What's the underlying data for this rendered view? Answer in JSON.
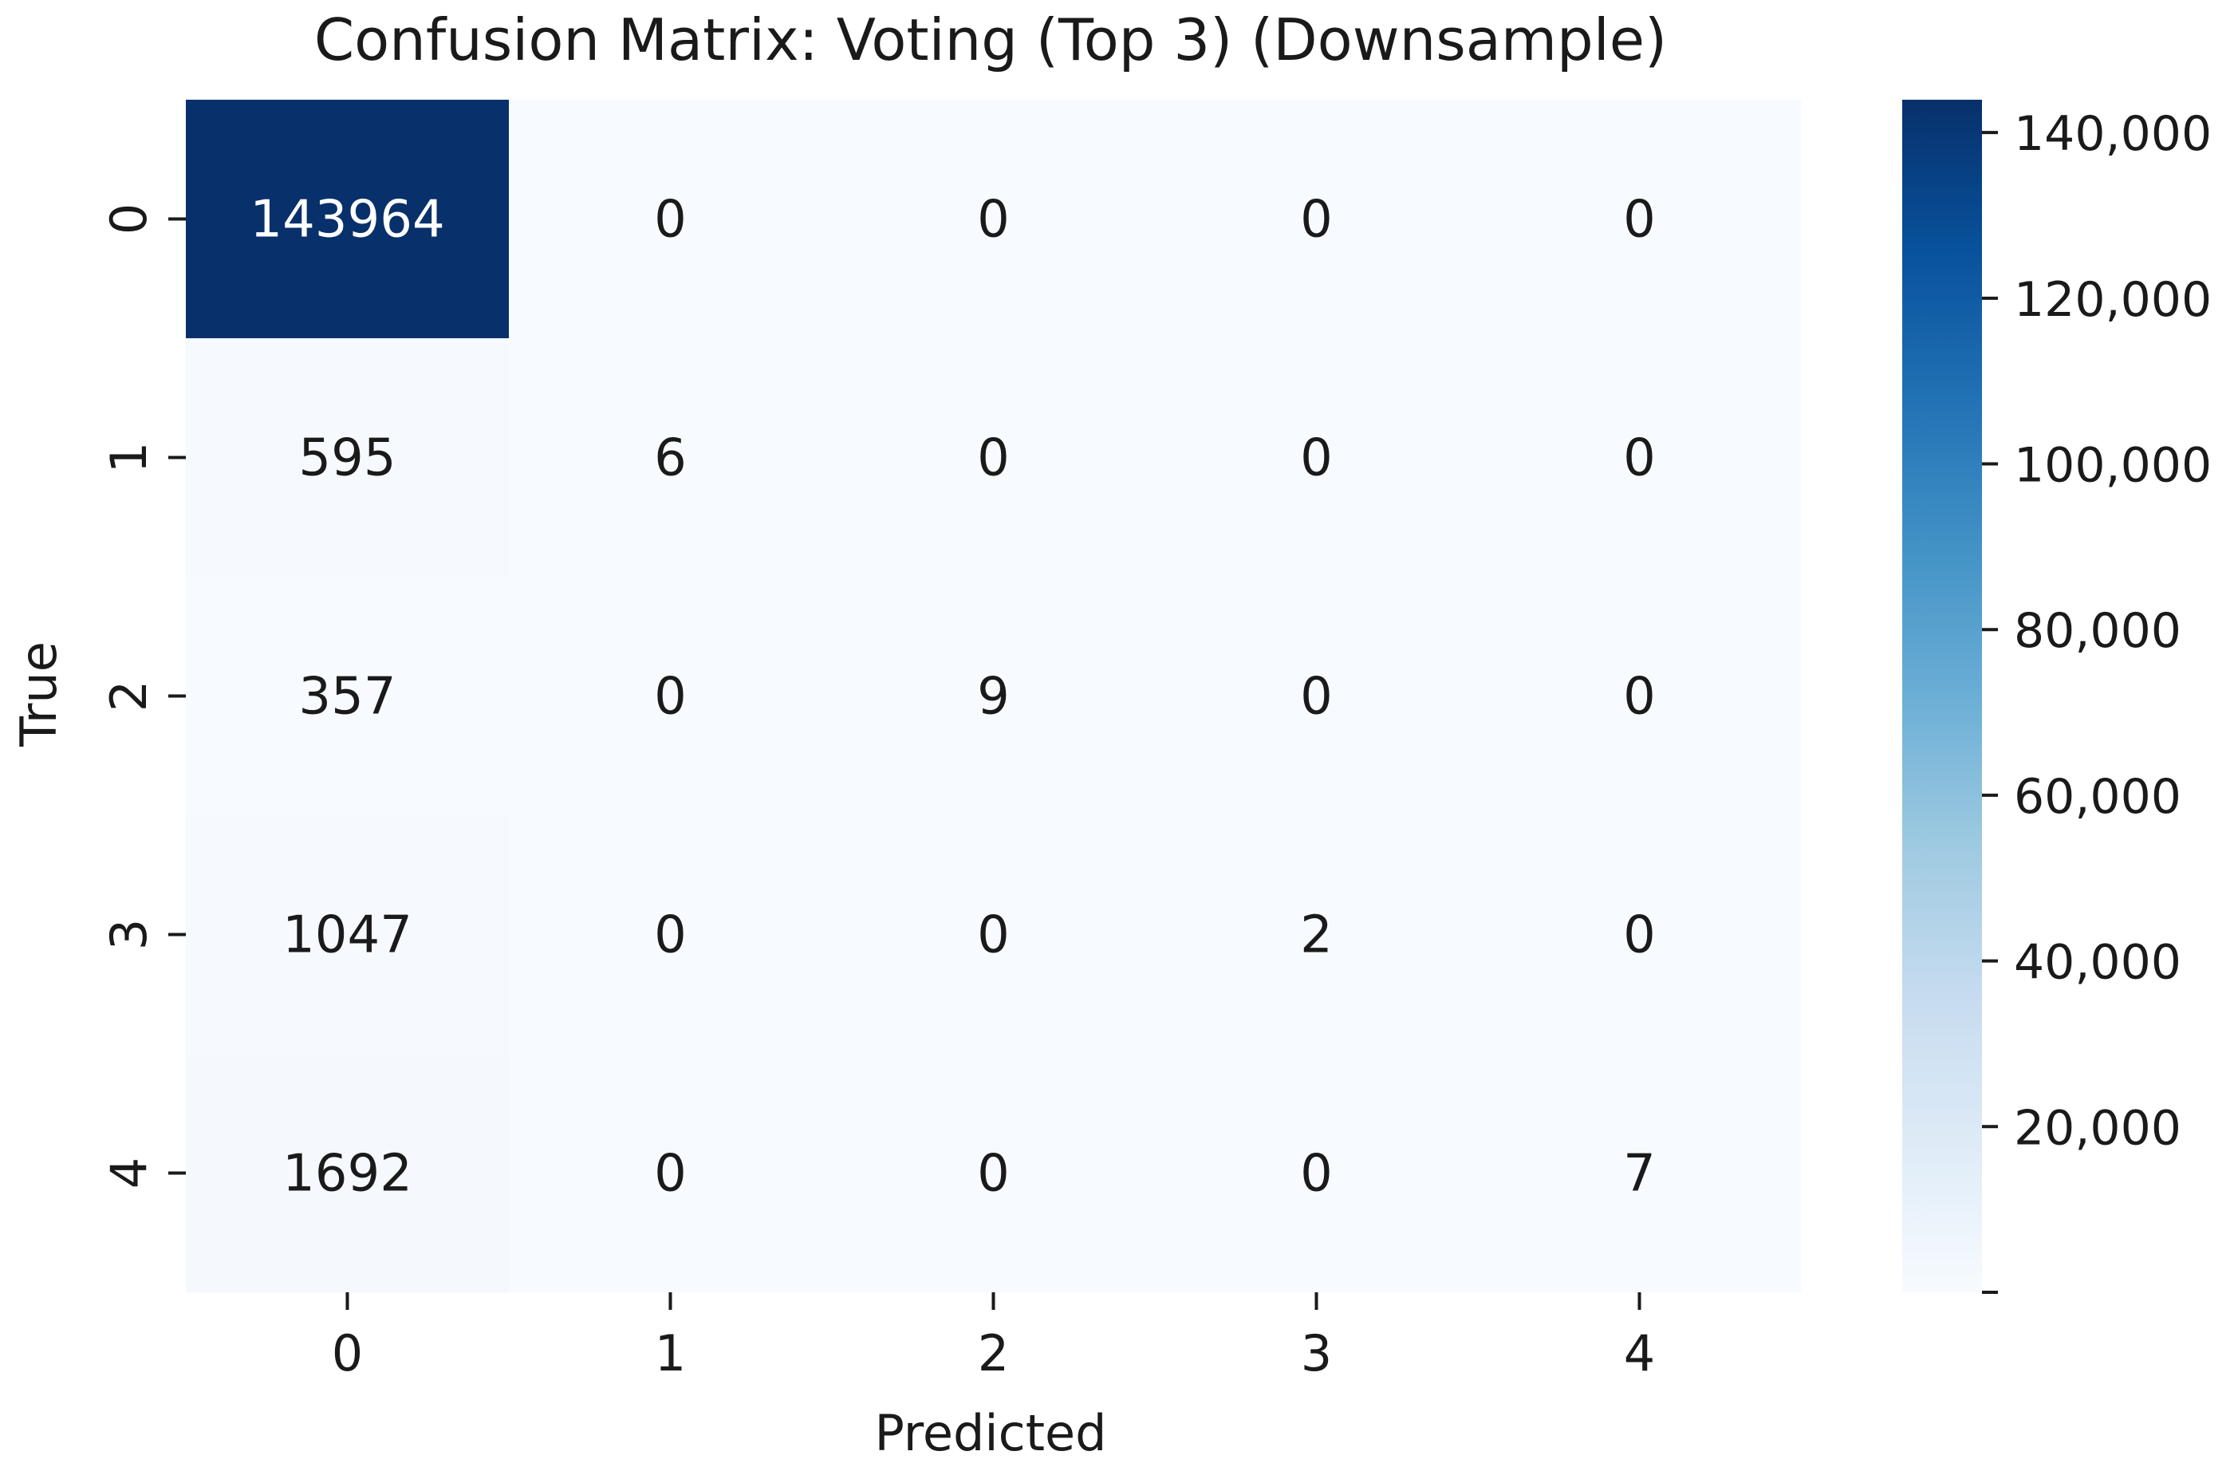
{
  "chart_data": {
    "type": "heatmap",
    "title": "Confusion Matrix: Voting (Top 3) (Downsample)",
    "xlabel": "Predicted",
    "ylabel": "True",
    "x_categories": [
      "0",
      "1",
      "2",
      "3",
      "4"
    ],
    "y_categories": [
      "0",
      "1",
      "2",
      "3",
      "4"
    ],
    "matrix": [
      [
        143964,
        0,
        0,
        0,
        0
      ],
      [
        595,
        6,
        0,
        0,
        0
      ],
      [
        357,
        0,
        9,
        0,
        0
      ],
      [
        1047,
        0,
        0,
        2,
        0
      ],
      [
        1692,
        0,
        0,
        0,
        7
      ]
    ],
    "cell_labels": [
      [
        "143964",
        "0",
        "0",
        "0",
        "0"
      ],
      [
        "595",
        "6",
        "0",
        "0",
        "0"
      ],
      [
        "357",
        "0",
        "9",
        "0",
        "0"
      ],
      [
        "1047",
        "0",
        "0",
        "2",
        "0"
      ],
      [
        "1692",
        "0",
        "0",
        "0",
        "7"
      ]
    ],
    "colorbar": {
      "colormap": "Blues",
      "range": [
        0,
        143964
      ],
      "ticks": [
        20000,
        40000,
        60000,
        80000,
        100000,
        120000,
        140000
      ],
      "tick_labels": [
        "20,000",
        "40,000",
        "60,000",
        "80,000",
        "100,000",
        "120,000",
        "140,000"
      ],
      "colors": [
        "#f7fbff",
        "#deebf7",
        "#c6dbef",
        "#9ecae1",
        "#6baed6",
        "#4292c6",
        "#2171b5",
        "#08519c",
        "#08306b"
      ]
    },
    "grid": false,
    "legend": "colorbar-right"
  }
}
